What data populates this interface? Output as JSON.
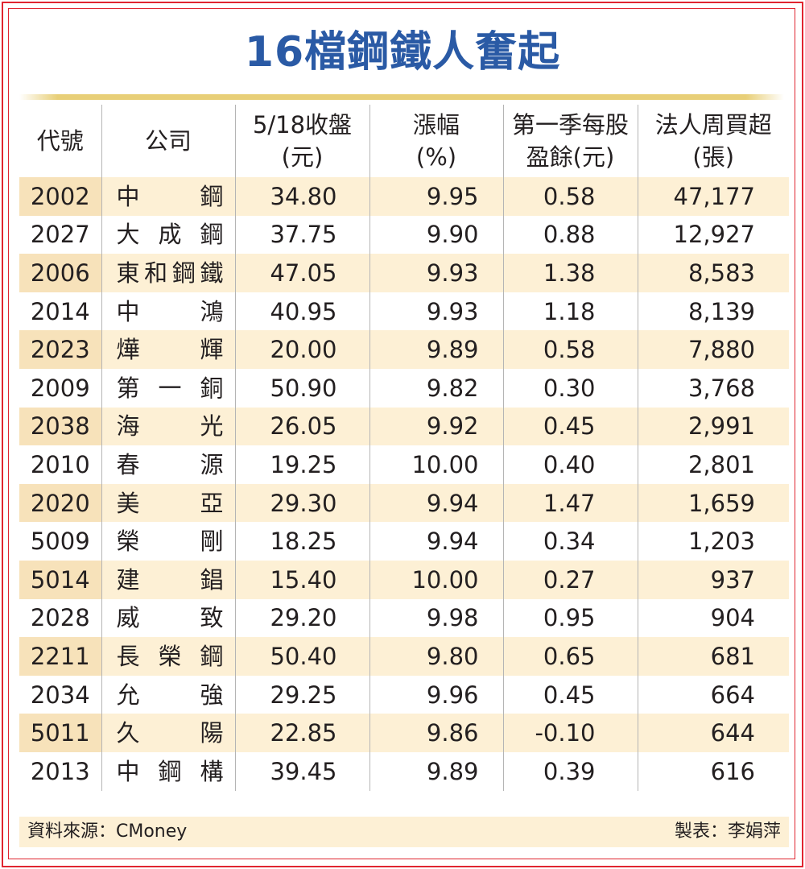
{
  "title": "16檔鋼鐵人奮起",
  "headers": {
    "code": "代號",
    "company": "公司",
    "close_l1": "5/18收盤",
    "close_l2": "(元)",
    "chg_l1": "漲幅",
    "chg_l2": "(%)",
    "eps_l1": "第一季每股",
    "eps_l2": "盈餘(元)",
    "buy_l1": "法人周買超",
    "buy_l2": "(張)"
  },
  "rows": [
    {
      "code": "2002",
      "name": "中鋼",
      "close": "34.80",
      "change": "9.95",
      "eps": "0.58",
      "net_buy": "47,177"
    },
    {
      "code": "2027",
      "name": "大成鋼",
      "close": "37.75",
      "change": "9.90",
      "eps": "0.88",
      "net_buy": "12,927"
    },
    {
      "code": "2006",
      "name": "東和鋼鐵",
      "close": "47.05",
      "change": "9.93",
      "eps": "1.38",
      "net_buy": "8,583"
    },
    {
      "code": "2014",
      "name": "中鴻",
      "close": "40.95",
      "change": "9.93",
      "eps": "1.18",
      "net_buy": "8,139"
    },
    {
      "code": "2023",
      "name": "燁輝",
      "close": "20.00",
      "change": "9.89",
      "eps": "0.58",
      "net_buy": "7,880"
    },
    {
      "code": "2009",
      "name": "第一銅",
      "close": "50.90",
      "change": "9.82",
      "eps": "0.30",
      "net_buy": "3,768"
    },
    {
      "code": "2038",
      "name": "海光",
      "close": "26.05",
      "change": "9.92",
      "eps": "0.45",
      "net_buy": "2,991"
    },
    {
      "code": "2010",
      "name": "春源",
      "close": "19.25",
      "change": "10.00",
      "eps": "0.40",
      "net_buy": "2,801"
    },
    {
      "code": "2020",
      "name": "美亞",
      "close": "29.30",
      "change": "9.94",
      "eps": "1.47",
      "net_buy": "1,659"
    },
    {
      "code": "5009",
      "name": "榮剛",
      "close": "18.25",
      "change": "9.94",
      "eps": "0.34",
      "net_buy": "1,203"
    },
    {
      "code": "5014",
      "name": "建錩",
      "close": "15.40",
      "change": "10.00",
      "eps": "0.27",
      "net_buy": "937"
    },
    {
      "code": "2028",
      "name": "威致",
      "close": "29.20",
      "change": "9.98",
      "eps": "0.95",
      "net_buy": "904"
    },
    {
      "code": "2211",
      "name": "長榮鋼",
      "close": "50.40",
      "change": "9.80",
      "eps": "0.65",
      "net_buy": "681"
    },
    {
      "code": "2034",
      "name": "允強",
      "close": "29.25",
      "change": "9.96",
      "eps": "0.45",
      "net_buy": "664"
    },
    {
      "code": "5011",
      "name": "久陽",
      "close": "22.85",
      "change": "9.86",
      "eps": "-0.10",
      "net_buy": "644"
    },
    {
      "code": "2013",
      "name": "中鋼構",
      "close": "39.45",
      "change": "9.89",
      "eps": "0.39",
      "net_buy": "616"
    }
  ],
  "footer": {
    "source": "資料來源：CMoney",
    "maker": "製表：李娟萍"
  },
  "colors": {
    "title": "#2a5aa5",
    "frame": "#e02530",
    "row_shade": "#fdf0d5",
    "code_shade": "#f7e2ba",
    "rule": "#e8cf78"
  }
}
